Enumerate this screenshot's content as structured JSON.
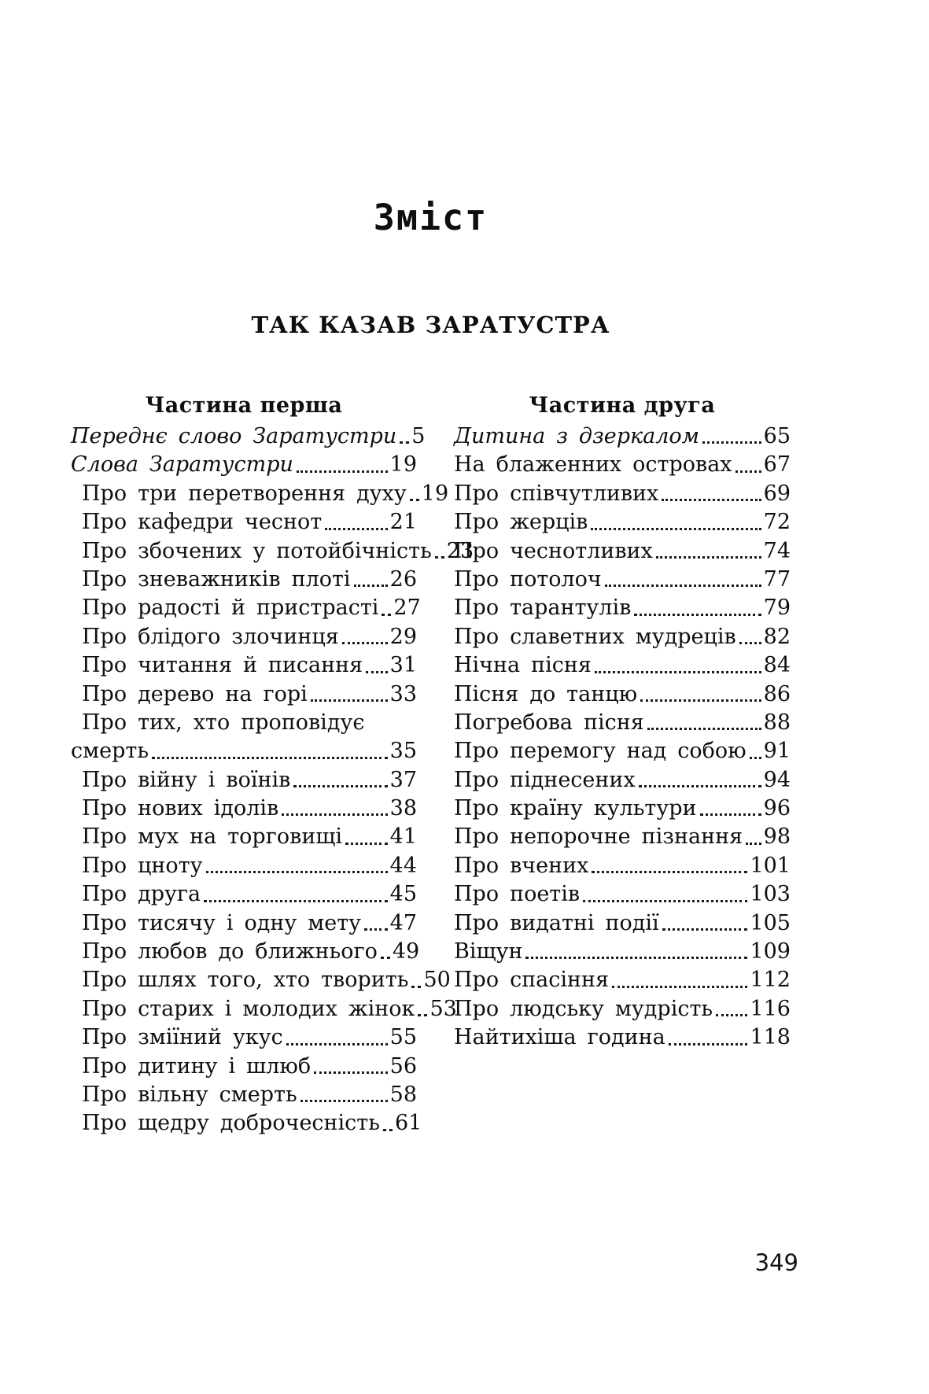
{
  "page": {
    "title": "Зміст",
    "book_title": "ТАК КАЗАВ ЗАРАТУСТРА",
    "folio": "349"
  },
  "columns": [
    {
      "heading": "Частина перша",
      "entries": [
        {
          "text": "Переднє слово Заратустри",
          "page": "5",
          "italic": true
        },
        {
          "text": "Слова Заратустри",
          "page": "19",
          "italic": true
        },
        {
          "text": "Про три перетворення духу",
          "page": "19"
        },
        {
          "text": "Про кафедри чеснот",
          "page": "21"
        },
        {
          "text": "Про збочених у потойбічність",
          "page": "23"
        },
        {
          "text": "Про зневажників плоті",
          "page": "26"
        },
        {
          "text": "Про радості й пристрасті",
          "page": "27"
        },
        {
          "text": "Про блідого злочинця",
          "page": "29"
        },
        {
          "text": "Про читання й писання",
          "page": "31"
        },
        {
          "text": "Про дерево на горі",
          "page": "33"
        },
        {
          "text": "Про тих, хто проповідує"
        },
        {
          "text": "смерть",
          "page": "35",
          "flush": true
        },
        {
          "text": "Про війну і воїнів",
          "page": "37"
        },
        {
          "text": "Про нових ідолів",
          "page": "38"
        },
        {
          "text": "Про мух на торговищі",
          "page": "41"
        },
        {
          "text": "Про цноту",
          "page": "44"
        },
        {
          "text": "Про друга",
          "page": "45"
        },
        {
          "text": "Про тисячу і одну мету",
          "page": "47"
        },
        {
          "text": "Про любов до ближнього",
          "page": "49"
        },
        {
          "text": "Про шлях того, хто творить",
          "page": "50"
        },
        {
          "text": "Про старих і молодих жінок",
          "page": "53"
        },
        {
          "text": "Про зміїний укус",
          "page": "55"
        },
        {
          "text": "Про дитину і шлюб",
          "page": "56"
        },
        {
          "text": "Про вільну смерть",
          "page": "58"
        },
        {
          "text": "Про щедру доброчесність",
          "page": "61"
        }
      ]
    },
    {
      "heading": "Частина друга",
      "entries": [
        {
          "text": "Дитина з дзеркалом",
          "page": "65",
          "italic": true
        },
        {
          "text": "На блаженних островах",
          "page": "67"
        },
        {
          "text": "Про співчутливих",
          "page": "69"
        },
        {
          "text": "Про жерців",
          "page": "72"
        },
        {
          "text": "Про чеснотливих",
          "page": "74"
        },
        {
          "text": "Про потолоч",
          "page": "77"
        },
        {
          "text": "Про тарантулів",
          "page": "79"
        },
        {
          "text": "Про славетних мудреців",
          "page": "82"
        },
        {
          "text": "Нічна пісня",
          "page": "84"
        },
        {
          "text": "Пісня до танцю",
          "page": "86"
        },
        {
          "text": "Погребова пісня",
          "page": "88"
        },
        {
          "text": "Про перемогу над собою",
          "page": "91"
        },
        {
          "text": "Про піднесених",
          "page": "94"
        },
        {
          "text": "Про країну культури",
          "page": "96"
        },
        {
          "text": "Про непорочне пізнання",
          "page": "98"
        },
        {
          "text": "Про вчених",
          "page": "101"
        },
        {
          "text": "Про поетів",
          "page": "103"
        },
        {
          "text": "Про видатні події",
          "page": "105"
        },
        {
          "text": "Віщун",
          "page": "109"
        },
        {
          "text": "Про спасіння",
          "page": "112"
        },
        {
          "text": "Про людську мудрість",
          "page": "116"
        },
        {
          "text": "Найтихіша година",
          "page": "118"
        }
      ]
    }
  ]
}
